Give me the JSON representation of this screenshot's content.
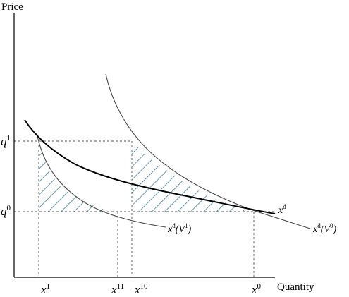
{
  "axes": {
    "y_title": "Price",
    "x_title": "Quantity"
  },
  "y_ticks": [
    {
      "base": "q",
      "sup": "1"
    },
    {
      "base": "q",
      "sup": "0"
    }
  ],
  "x_ticks": [
    {
      "base": "x",
      "sup": "1"
    },
    {
      "base": "x",
      "sup": "11"
    },
    {
      "base": "x",
      "sup": "10"
    },
    {
      "base": "x",
      "sup": "0"
    }
  ],
  "curve_labels": {
    "marshallian": {
      "base": "x",
      "sup": "d"
    },
    "hicks_v1": {
      "base": "x",
      "sup": "d",
      "arg_open": "(V",
      "arg_sup": "1",
      "arg_close": ")"
    },
    "hicks_v0": {
      "base": "x",
      "sup": "d",
      "arg_open": "(V",
      "arg_sup": "0",
      "arg_close": ")"
    }
  },
  "colors": {
    "hatch": "#2e6f88",
    "curve": "#000000",
    "thin_curve": "#444444",
    "guide": "#555555"
  }
}
